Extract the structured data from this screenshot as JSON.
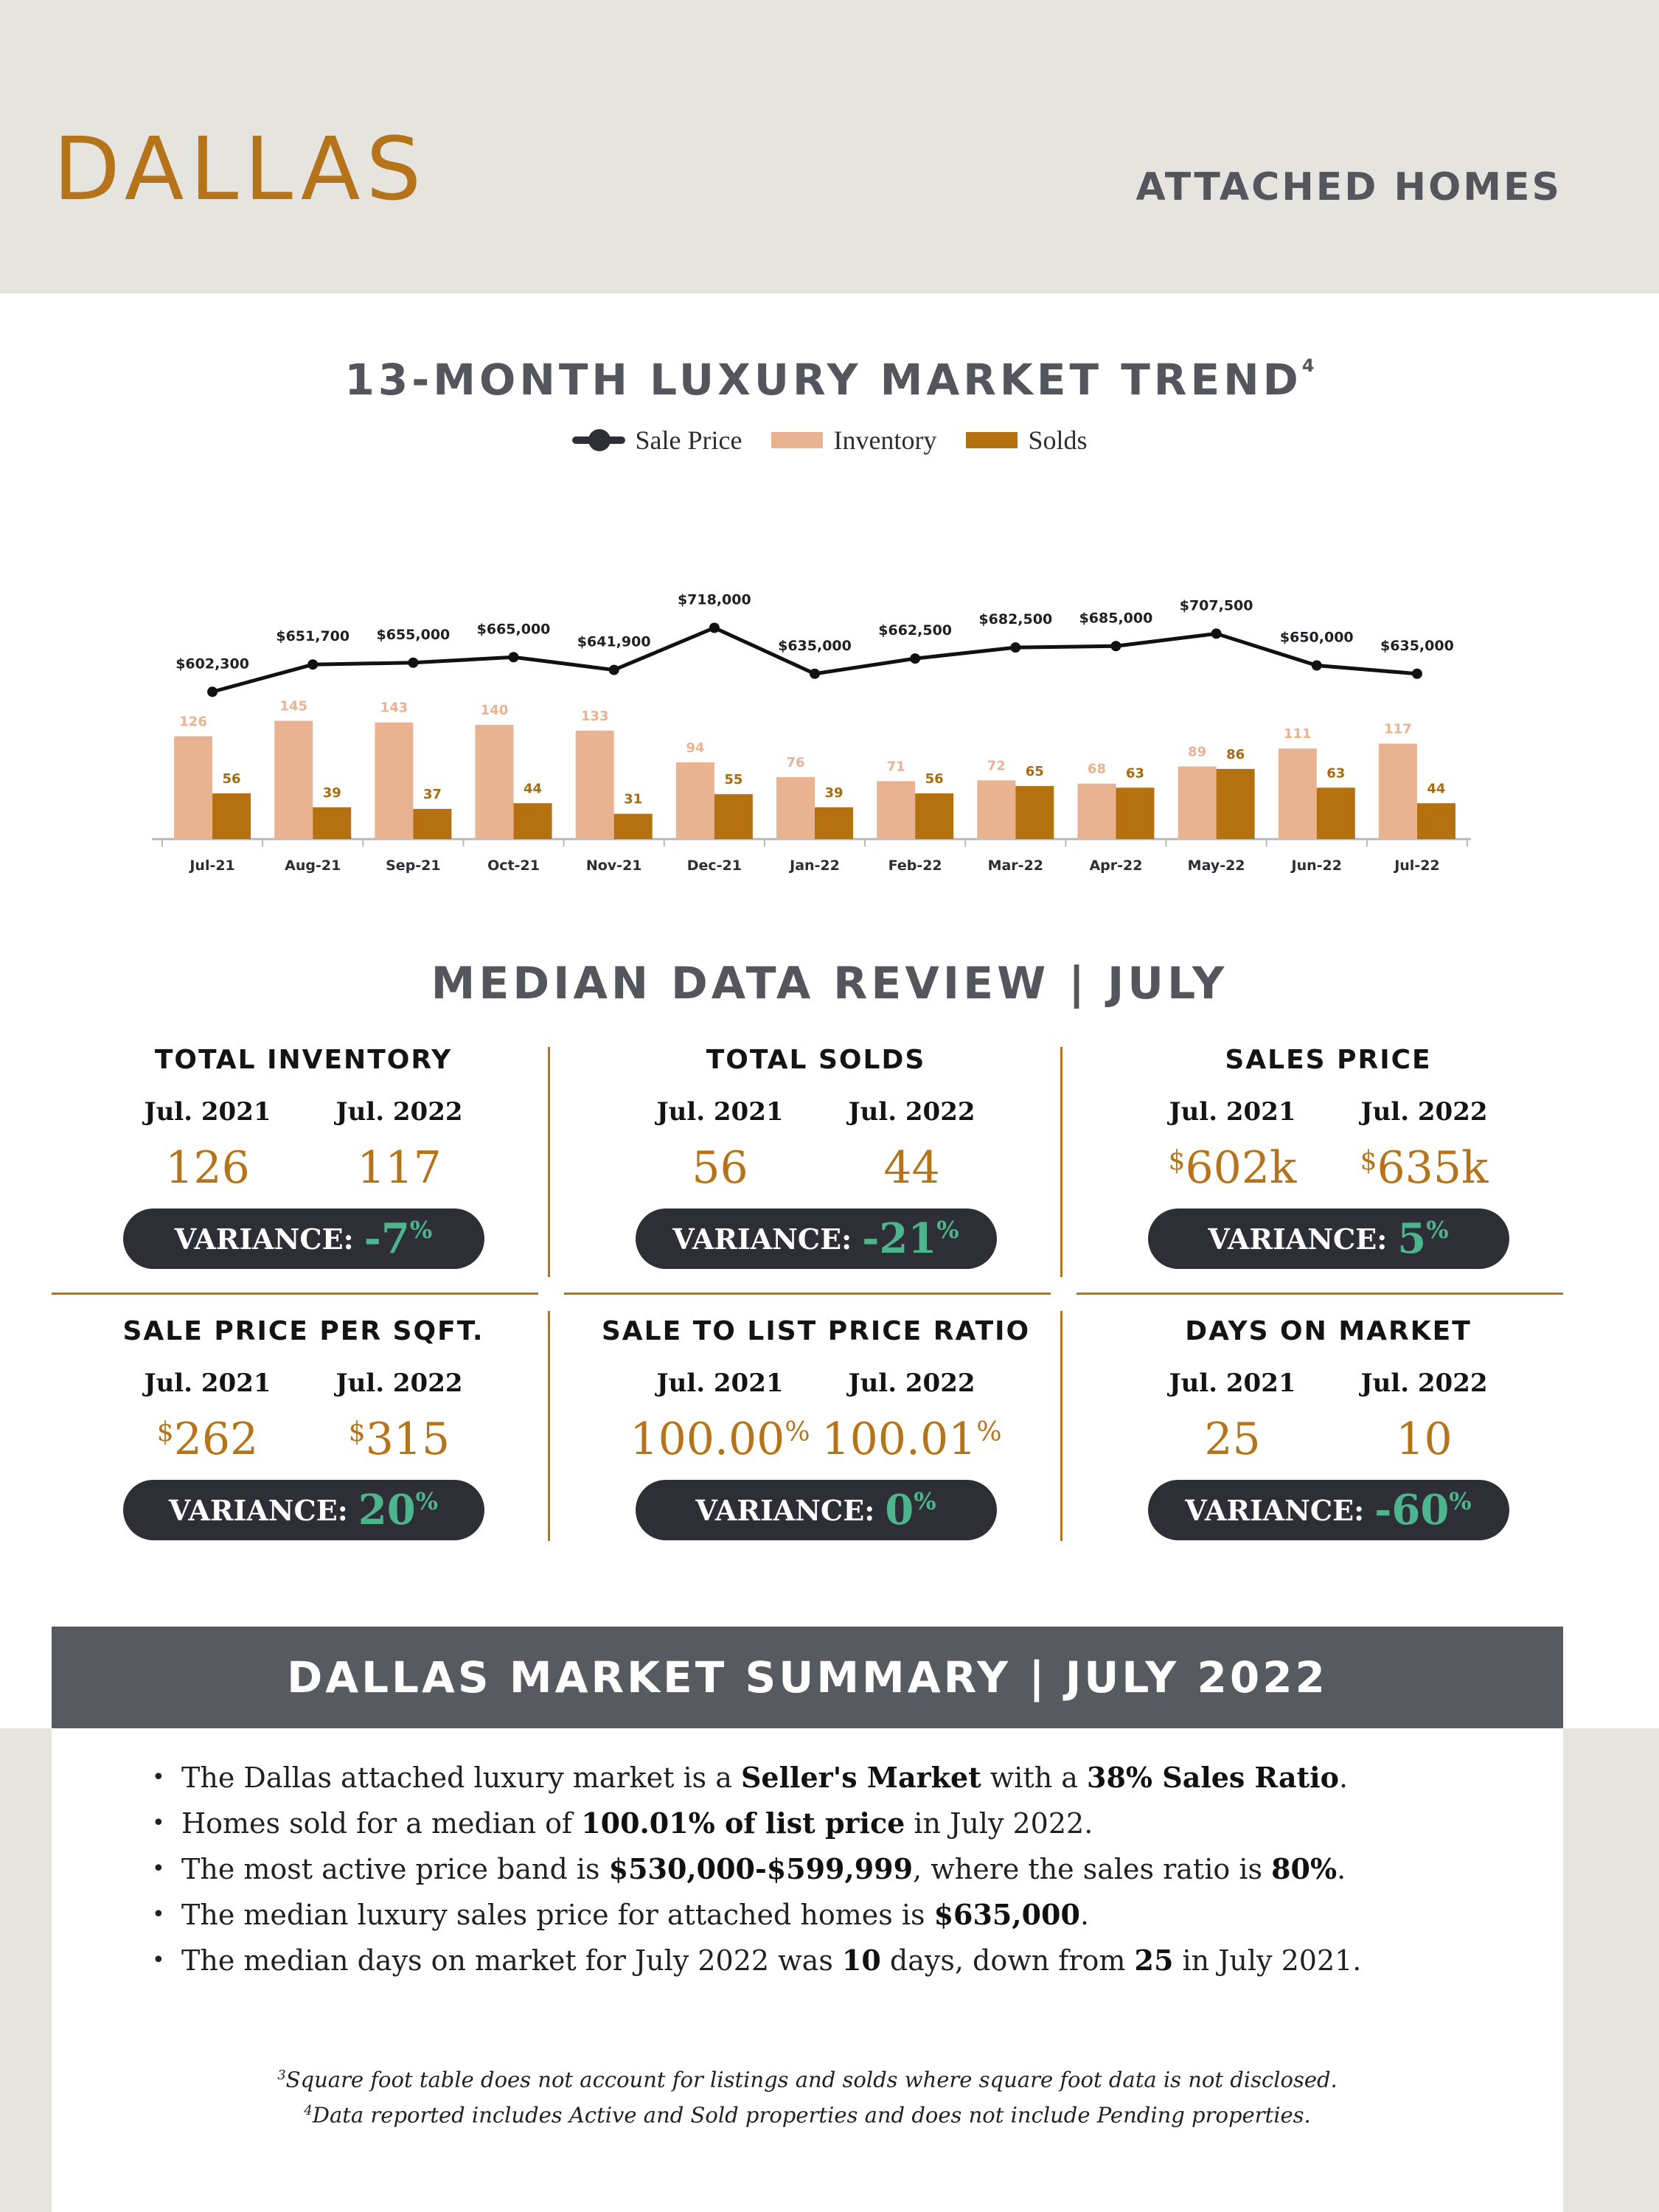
{
  "header": {
    "city": "DALLAS",
    "doc_type": "ATTACHED HOMES"
  },
  "trend": {
    "title": "13-MONTH LUXURY MARKET TREND",
    "title_note": "4",
    "legend": [
      {
        "label": "Sale Price",
        "color": "#2e2f36"
      },
      {
        "label": "Inventory",
        "color": "#e9b392"
      },
      {
        "label": "Solds",
        "color": "#b5700f"
      }
    ]
  },
  "chart_data": {
    "type": "bar",
    "title": "13-MONTH LUXURY MARKET TREND",
    "categories": [
      "Jul-21",
      "Aug-21",
      "Sep-21",
      "Oct-21",
      "Nov-21",
      "Dec-21",
      "Jan-22",
      "Feb-22",
      "Mar-22",
      "Apr-22",
      "May-22",
      "Jun-22",
      "Jul-22"
    ],
    "series": [
      {
        "name": "Sale Price",
        "kind": "line",
        "color": "#111111",
        "values": [
          602300,
          651700,
          655000,
          665000,
          641900,
          718000,
          635000,
          662500,
          682500,
          685000,
          707500,
          650000,
          635000
        ],
        "labels": [
          "$602,300",
          "$651,700",
          "$655,000",
          "$665,000",
          "$641,900",
          "$718,000",
          "$635,000",
          "$662,500",
          "$682,500",
          "$685,000",
          "$707,500",
          "$650,000",
          "$635,000"
        ]
      },
      {
        "name": "Inventory",
        "kind": "bar",
        "color": "#e9b392",
        "values": [
          126,
          145,
          143,
          140,
          133,
          94,
          76,
          71,
          72,
          68,
          89,
          111,
          117
        ]
      },
      {
        "name": "Solds",
        "kind": "bar",
        "color": "#b5700f",
        "values": [
          56,
          39,
          37,
          44,
          31,
          55,
          39,
          56,
          65,
          63,
          86,
          63,
          44
        ]
      }
    ],
    "bar_ylim": [
      0,
      150
    ],
    "line_ylim": [
      560000,
      760000
    ],
    "grid": false,
    "legend": "top"
  },
  "review": {
    "title": "MEDIAN DATA REVIEW | JULY",
    "year_a": "Jul. 2021",
    "year_b": "Jul. 2022",
    "variance_label": "VARIANCE:",
    "metrics": [
      {
        "title": "TOTAL INVENTORY",
        "a": "126",
        "b": "117",
        "prefix": "",
        "suffix": "",
        "variance": "-7",
        "variance_unit": "%"
      },
      {
        "title": "TOTAL SOLDS",
        "a": "56",
        "b": "44",
        "prefix": "",
        "suffix": "",
        "variance": "-21",
        "variance_unit": "%"
      },
      {
        "title": "SALES PRICE",
        "a": "602k",
        "b": "635k",
        "prefix": "$",
        "suffix": "",
        "variance": "5",
        "variance_unit": "%"
      },
      {
        "title": "SALE PRICE PER SQFT.",
        "a": "262",
        "b": "315",
        "prefix": "$",
        "suffix": "",
        "variance": "20",
        "variance_unit": "%"
      },
      {
        "title": "SALE TO LIST PRICE RATIO",
        "a": "100.00",
        "b": "100.01",
        "prefix": "",
        "suffix": "%",
        "variance": "0",
        "variance_unit": "%"
      },
      {
        "title": "DAYS ON MARKET",
        "a": "25",
        "b": "10",
        "prefix": "",
        "suffix": "",
        "variance": "-60",
        "variance_unit": "%"
      }
    ]
  },
  "summary": {
    "title": "DALLAS MARKET SUMMARY | JULY 2022",
    "bullets": [
      [
        "The Dallas attached luxury market is a ",
        {
          "b": "Seller's Market"
        },
        " with a ",
        {
          "b": "38% Sales Ratio"
        },
        "."
      ],
      [
        "Homes sold for a median of ",
        {
          "b": "100.01% of list price"
        },
        " in July 2022."
      ],
      [
        "The most active price band is ",
        {
          "b": "$530,000-$599,999"
        },
        ", where the sales ratio is ",
        {
          "b": "80%"
        },
        "."
      ],
      [
        "The median luxury sales price for attached homes is ",
        {
          "b": "$635,000"
        },
        "."
      ],
      [
        "The median days on market for July 2022 was ",
        {
          "b": "10"
        },
        " days, down from ",
        {
          "b": "25"
        },
        " in July 2021."
      ]
    ],
    "footnotes": [
      {
        "mark": "3",
        "text": "Square foot table does not account for listings and solds where square foot data is not disclosed."
      },
      {
        "mark": "4",
        "text": "Data reported includes Active and Sold properties and does not include Pending properties."
      }
    ]
  }
}
